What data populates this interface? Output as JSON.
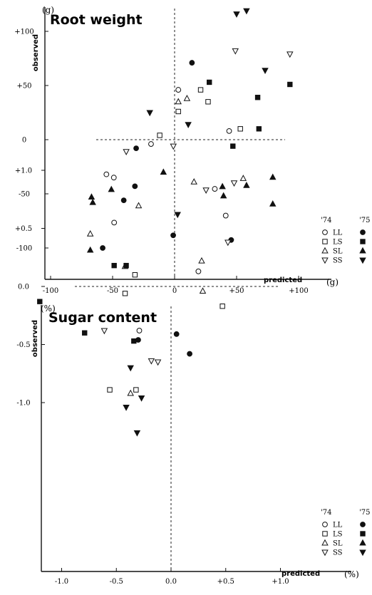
{
  "legend": {
    "year_a": "'74",
    "year_b": "'75",
    "entries": [
      {
        "label": "LL",
        "shape": "circle"
      },
      {
        "label": "LS",
        "shape": "square"
      },
      {
        "label": "SL",
        "shape": "triangle-up"
      },
      {
        "label": "SS",
        "shape": "triangle-down"
      }
    ]
  },
  "chart_data": [
    {
      "type": "scatter",
      "title": "Root weight",
      "xlabel": "predicted",
      "ylabel": "observed",
      "xunit": "(g)",
      "yunit": "(g)",
      "xlim": [
        -130,
        125
      ],
      "ylim": [
        -125,
        122
      ],
      "xticks": [
        -100,
        -50,
        0,
        50,
        100
      ],
      "xtick_labels": [
        "-100",
        "-50",
        "0",
        "+50",
        "+100"
      ],
      "yticks": [
        100,
        50,
        0,
        -50,
        -100
      ],
      "ytick_labels": [
        "+100",
        "+50",
        "0",
        "-50",
        "-100"
      ],
      "series": [
        {
          "group": "LL",
          "year": "'74",
          "marker": "circle-open",
          "points": [
            [
              -55,
              -32
            ],
            [
              -49,
              -35
            ],
            [
              -19,
              -4
            ],
            [
              3,
              46
            ],
            [
              44,
              8
            ]
          ]
        },
        {
          "group": "LL",
          "year": "'75",
          "marker": "circle-filled",
          "points": [
            [
              -58,
              -100
            ],
            [
              -41,
              -56
            ],
            [
              -32,
              -43
            ],
            [
              -31,
              -8
            ],
            [
              14,
              71
            ]
          ]
        },
        {
          "group": "LS",
          "year": "'74",
          "marker": "square-open",
          "points": [
            [
              -12,
              4
            ],
            [
              3,
              26
            ],
            [
              21,
              46
            ],
            [
              27,
              35
            ],
            [
              53,
              10
            ]
          ]
        },
        {
          "group": "LS",
          "year": "'75",
          "marker": "square-filled",
          "points": [
            [
              28,
              53
            ],
            [
              47,
              -6
            ],
            [
              67,
              39
            ],
            [
              68,
              10
            ],
            [
              93,
              51
            ]
          ]
        },
        {
          "group": "SL",
          "year": "'74",
          "marker": "triangle-up-open",
          "points": [
            [
              -68,
              -87
            ],
            [
              -40,
              -117
            ],
            [
              -29,
              -61
            ],
            [
              3,
              35
            ],
            [
              10,
              38
            ]
          ]
        },
        {
          "group": "SL",
          "year": "'75",
          "marker": "triangle-up-filled",
          "points": [
            [
              -67,
              -53
            ],
            [
              -66,
              -58
            ],
            [
              -51,
              -46
            ],
            [
              -68,
              -102
            ],
            [
              -9,
              -30
            ]
          ]
        },
        {
          "group": "SS",
          "year": "'74",
          "marker": "triangle-down-open",
          "points": [
            [
              -39,
              -11
            ],
            [
              -1,
              -6
            ],
            [
              48,
              -40
            ],
            [
              49,
              82
            ],
            [
              93,
              79
            ]
          ]
        },
        {
          "group": "SS",
          "year": "'75",
          "marker": "triangle-down-filled",
          "points": [
            [
              -20,
              25
            ],
            [
              11,
              14
            ],
            [
              50,
              116
            ],
            [
              58,
              119
            ],
            [
              73,
              64
            ]
          ]
        }
      ]
    },
    {
      "type": "scatter",
      "title": "Sugar content",
      "xlabel": "predicted",
      "ylabel": "observed",
      "xunit": "(%)",
      "yunit": "(%)",
      "xlim": [
        -1.3,
        1.47
      ],
      "ylim": [
        -1.35,
        1.05
      ],
      "xticks": [
        -1.0,
        -0.5,
        0.0,
        0.5,
        1.0
      ],
      "xtick_labels": [
        "-1.0",
        "-0.5",
        "0.0",
        "+0.5",
        "+1.0"
      ],
      "yticks": [
        1.0,
        0.5,
        0.0,
        -0.5,
        -1.0
      ],
      "ytick_labels": [
        "+1.0",
        "+0.5",
        "0.0",
        "-0.5",
        "-1.0"
      ],
      "series": [
        {
          "group": "LL",
          "year": "'74",
          "marker": "circle-open",
          "points": [
            [
              -0.52,
              0.55
            ],
            [
              -0.29,
              -0.38
            ],
            [
              0.25,
              0.13
            ],
            [
              0.4,
              0.84
            ],
            [
              0.5,
              0.61
            ]
          ]
        },
        {
          "group": "LL",
          "year": "'75",
          "marker": "circle-filled",
          "points": [
            [
              -0.3,
              -0.46
            ],
            [
              0.02,
              0.44
            ],
            [
              0.05,
              -0.41
            ],
            [
              0.17,
              -0.58
            ],
            [
              0.55,
              0.4
            ]
          ]
        },
        {
          "group": "LS",
          "year": "'74",
          "marker": "square-open",
          "points": [
            [
              -0.56,
              -0.89
            ],
            [
              -0.42,
              -0.06
            ],
            [
              -0.32,
              -0.89
            ],
            [
              -0.33,
              0.1
            ],
            [
              0.47,
              -0.17
            ]
          ]
        },
        {
          "group": "LS",
          "year": "'75",
          "marker": "square-filled",
          "points": [
            [
              -1.2,
              -0.13
            ],
            [
              -0.79,
              -0.4
            ],
            [
              -0.41,
              0.18
            ],
            [
              -0.34,
              -0.47
            ],
            [
              -0.52,
              0.18
            ]
          ]
        },
        {
          "group": "SL",
          "year": "'74",
          "marker": "triangle-up-open",
          "points": [
            [
              -0.37,
              -0.92
            ],
            [
              0.21,
              0.9
            ],
            [
              0.28,
              0.22
            ],
            [
              0.29,
              -0.04
            ],
            [
              0.66,
              0.93
            ]
          ]
        },
        {
          "group": "SL",
          "year": "'75",
          "marker": "triangle-up-filled",
          "points": [
            [
              0.48,
              0.78
            ],
            [
              0.47,
              0.86
            ],
            [
              0.69,
              0.87
            ],
            [
              0.93,
              0.94
            ],
            [
              0.93,
              0.71
            ]
          ]
        },
        {
          "group": "SS",
          "year": "'74",
          "marker": "triangle-down-open",
          "points": [
            [
              -0.61,
              -0.38
            ],
            [
              -0.18,
              -0.64
            ],
            [
              -0.12,
              -0.65
            ],
            [
              0.32,
              0.83
            ],
            [
              0.52,
              0.38
            ]
          ]
        },
        {
          "group": "SS",
          "year": "'75",
          "marker": "triangle-down-filled",
          "points": [
            [
              -0.37,
              -0.7
            ],
            [
              -0.27,
              -0.96
            ],
            [
              -0.41,
              -1.04
            ],
            [
              0.06,
              0.62
            ],
            [
              -0.31,
              -1.26
            ]
          ]
        }
      ]
    }
  ]
}
